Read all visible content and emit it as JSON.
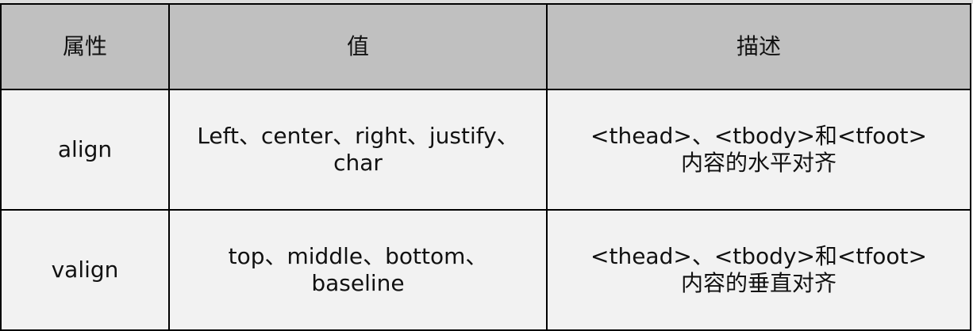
{
  "table": {
    "headers": [
      "属性",
      "值",
      "描述"
    ],
    "rows": [
      {
        "attribute": "align",
        "value_lines": [
          "Left、center、right、justify、",
          "char"
        ],
        "description_lines": [
          "<thead>、<tbody>和<tfoot>",
          "内容的水平对齐"
        ]
      },
      {
        "attribute": "valign",
        "value_lines": [
          "top、middle、bottom、",
          "baseline"
        ],
        "description_lines": [
          "<thead>、<tbody>和<tfoot>",
          "内容的垂直对齐"
        ]
      }
    ]
  },
  "colors": {
    "header_bg": "#c0c0c0",
    "cell_bg": "#f2f2f2",
    "border": "#000000"
  }
}
